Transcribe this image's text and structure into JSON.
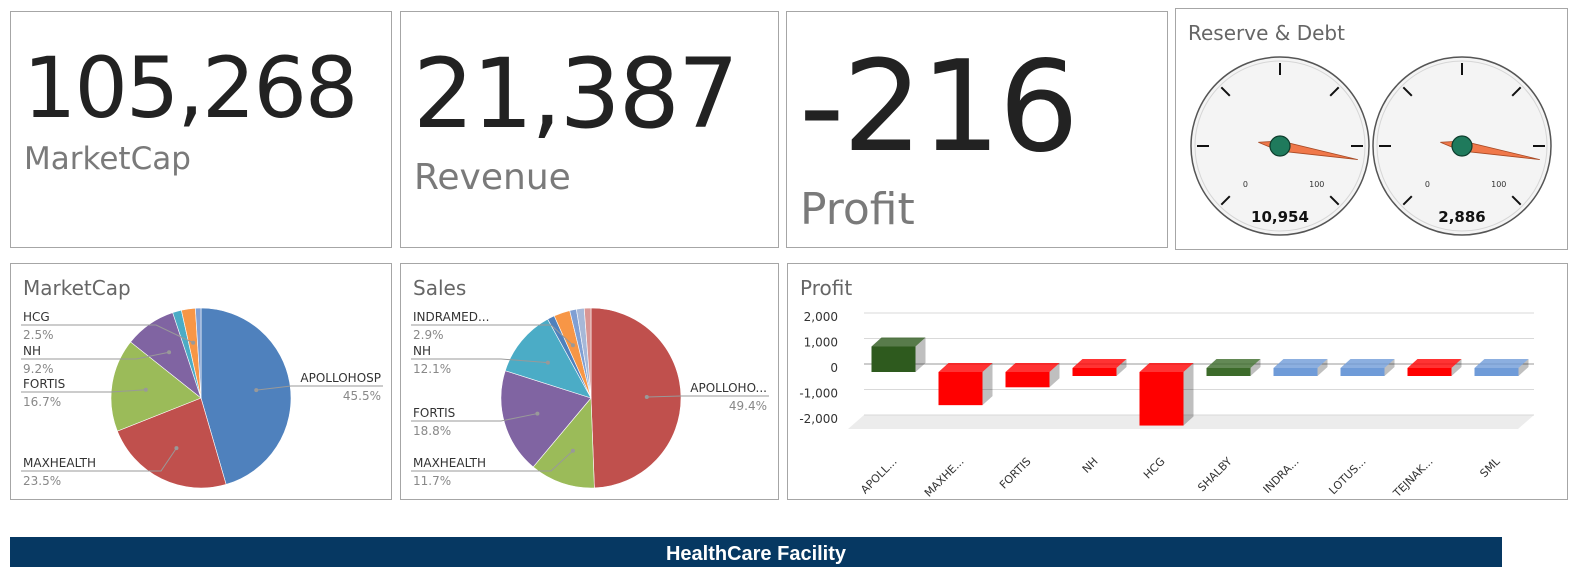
{
  "kpis": [
    {
      "value": "105,268",
      "label": "MarketCap"
    },
    {
      "value": "21,387",
      "label": "Revenue"
    },
    {
      "value": "-216",
      "label": "Profit"
    }
  ],
  "gauges": {
    "title": "Reserve & Debt",
    "min_label": "0",
    "max_label": "100",
    "items": [
      {
        "value_label": "10,954",
        "needle_fraction": 0.87
      },
      {
        "value_label": "2,886",
        "needle_fraction": 0.87
      }
    ],
    "colors": {
      "needle": "#f0784a",
      "hub": "#1f7a5c",
      "face": "#f4f4f4"
    }
  },
  "marketcap_pie": {
    "title": "MarketCap",
    "chart_data": {
      "type": "pie",
      "slices": [
        {
          "label": "APOLLOHOSP",
          "pct": "45.5%",
          "value": 45.5,
          "color": "#4f81bd"
        },
        {
          "label": "MAXHEALTH",
          "pct": "23.5%",
          "value": 23.5,
          "color": "#c0504d"
        },
        {
          "label": "FORTIS",
          "pct": "16.7%",
          "value": 16.7,
          "color": "#9bbb59"
        },
        {
          "label": "NH",
          "pct": "9.2%",
          "value": 9.2,
          "color": "#8064a2"
        },
        {
          "label": "",
          "pct": "",
          "value": 1.6,
          "color": "#4bacc6"
        },
        {
          "label": "HCG",
          "pct": "2.5%",
          "value": 2.5,
          "color": "#f79646"
        },
        {
          "label": "",
          "pct": "",
          "value": 1.0,
          "color": "#7f9fd3"
        }
      ]
    }
  },
  "sales_pie": {
    "title": "Sales",
    "chart_data": {
      "type": "pie",
      "slices": [
        {
          "label": "APOLLOHO...",
          "pct": "49.4%",
          "value": 49.4,
          "color": "#c0504d"
        },
        {
          "label": "MAXHEALTH",
          "pct": "11.7%",
          "value": 11.7,
          "color": "#9bbb59"
        },
        {
          "label": "FORTIS",
          "pct": "18.8%",
          "value": 18.8,
          "color": "#8064a2"
        },
        {
          "label": "NH",
          "pct": "12.1%",
          "value": 12.1,
          "color": "#4bacc6"
        },
        {
          "label": "",
          "pct": "",
          "value": 1.3,
          "color": "#4f81bd"
        },
        {
          "label": "INDRAMED...",
          "pct": "2.9%",
          "value": 2.9,
          "color": "#f79646"
        },
        {
          "label": "",
          "pct": "",
          "value": 1.2,
          "color": "#7f9fd3"
        },
        {
          "label": "",
          "pct": "",
          "value": 1.4,
          "color": "#a6b8d8"
        },
        {
          "label": "",
          "pct": "",
          "value": 1.2,
          "color": "#d99694"
        }
      ]
    }
  },
  "profit_bar": {
    "title": "Profit",
    "chart_data": {
      "type": "bar",
      "categories": [
        "APOLL...",
        "MAXHE...",
        "FORTIS",
        "NH",
        "HCG",
        "SHALBY",
        "INDRA...",
        "LOTUS...",
        "TEJNAK...",
        "SML"
      ],
      "values": [
        1000,
        -1300,
        -600,
        -300,
        -2100,
        250,
        10,
        10,
        -20,
        10
      ],
      "colors": [
        "#2e5a1e",
        "#ff0000",
        "#ff0000",
        "#ff0000",
        "#ff0000",
        "#3c6b2a",
        "#6f9bd8",
        "#6f9bd8",
        "#ff0000",
        "#6f9bd8"
      ],
      "yticks": [
        "2,000",
        "1,000",
        "0",
        "-1,000",
        "-2,000"
      ],
      "ylim": [
        -2000,
        2000
      ]
    }
  },
  "footer": {
    "title": "HealthCare Facility"
  }
}
